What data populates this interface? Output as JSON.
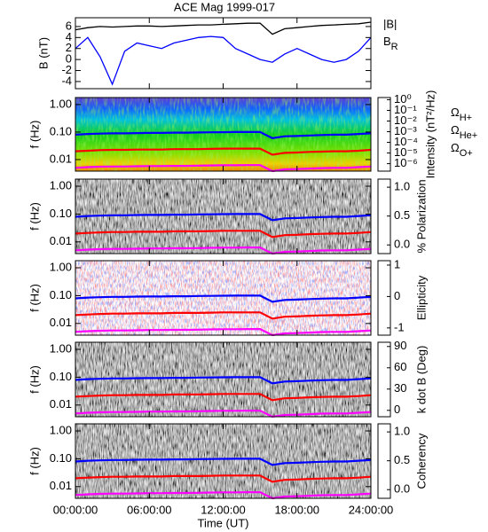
{
  "chart_data": [
    {
      "type": "line",
      "title": "ACE Mag 1999-017",
      "ylabel": "B (nT)",
      "xlim": [
        0,
        24
      ],
      "ylim": [
        -5.3,
        7.6
      ],
      "yticks": [
        -4,
        -2,
        0,
        2,
        4,
        6
      ],
      "x": [
        0,
        1,
        2,
        3,
        4,
        5,
        6,
        7,
        8,
        9,
        10,
        11,
        12,
        13,
        14,
        15,
        16,
        17,
        18,
        19,
        20,
        21,
        22,
        23,
        24
      ],
      "series": [
        {
          "name": "|B|",
          "color": "#000000",
          "values": [
            5.4,
            5.8,
            6.0,
            5.9,
            6.0,
            6.1,
            6.1,
            6.0,
            6.1,
            6.2,
            6.3,
            6.3,
            6.4,
            6.5,
            6.6,
            6.6,
            4.6,
            5.6,
            5.8,
            6.0,
            6.2,
            6.3,
            6.4,
            6.5,
            6.8
          ]
        },
        {
          "name": "BR",
          "color": "#0000ff",
          "values": [
            2.0,
            4.0,
            0.5,
            -4.5,
            1.5,
            3.0,
            2.5,
            2.0,
            3.0,
            3.5,
            4.0,
            4.2,
            4.0,
            2.0,
            1.0,
            0.0,
            -0.5,
            1.0,
            2.0,
            1.0,
            0.0,
            -0.5,
            0.0,
            1.5,
            4.0
          ]
        }
      ]
    },
    {
      "type": "spectrogram",
      "ylabel": "f (Hz)",
      "xlim": [
        0,
        24
      ],
      "ylim": [
        0.0038,
        1.8
      ],
      "log_y": true,
      "yticks": [
        {
          "value": 1,
          "label": "1.00"
        },
        {
          "value": 0.1,
          "label": "0.10"
        },
        0.01
      ],
      "colorbar": {
        "label": "Intensity (nT²/Hz)",
        "colormap": "rainbow",
        "log": true,
        "lim": [
          2e-07,
          1.6
        ],
        "ticks": [
          {
            "value": 1,
            "label": "10⁰"
          },
          {
            "value": 0.1,
            "label": "10⁻¹"
          },
          {
            "value": 0.01,
            "label": "10⁻²"
          },
          {
            "value": 0.001,
            "label": "10⁻³"
          },
          {
            "value": 0.0001,
            "label": "10⁻⁴"
          },
          {
            "value": 1e-05,
            "label": "10⁻⁵"
          },
          {
            "value": 1e-06,
            "label": "10⁻⁶"
          }
        ]
      },
      "x": [
        0,
        1,
        2,
        3,
        4,
        5,
        6,
        7,
        8,
        9,
        10,
        11,
        12,
        13,
        14,
        15,
        16,
        17,
        18,
        19,
        20,
        21,
        22,
        23,
        24
      ],
      "series": [
        {
          "name": "ΩH+",
          "color": "#0000ff",
          "values": [
            0.08,
            0.085,
            0.088,
            0.09,
            0.09,
            0.092,
            0.093,
            0.093,
            0.095,
            0.095,
            0.097,
            0.098,
            0.099,
            0.1,
            0.1,
            0.1,
            0.06,
            0.07,
            0.072,
            0.075,
            0.078,
            0.08,
            0.08,
            0.085,
            0.09
          ]
        },
        {
          "name": "ΩHe+",
          "color": "#ff0000",
          "values": [
            0.02,
            0.021,
            0.022,
            0.0225,
            0.0225,
            0.023,
            0.023,
            0.023,
            0.024,
            0.024,
            0.024,
            0.0245,
            0.025,
            0.025,
            0.025,
            0.025,
            0.015,
            0.0175,
            0.018,
            0.019,
            0.0195,
            0.02,
            0.02,
            0.021,
            0.0225
          ]
        },
        {
          "name": "ΩO+",
          "color": "#ff00ff",
          "values": [
            0.005,
            0.0053,
            0.0055,
            0.0056,
            0.0056,
            0.0057,
            0.0058,
            0.0058,
            0.0059,
            0.0059,
            0.006,
            0.0061,
            0.0062,
            0.0062,
            0.0063,
            0.0063,
            0.0038,
            0.0044,
            0.0045,
            0.0047,
            0.0049,
            0.005,
            0.005,
            0.0053,
            0.0056
          ]
        }
      ]
    },
    {
      "type": "spectrogram",
      "ylabel": "f (Hz)",
      "xlim": [
        0,
        24
      ],
      "ylim": [
        0.0038,
        1.8
      ],
      "log_y": true,
      "yticks": [
        {
          "value": 1,
          "label": "1.00"
        },
        {
          "value": 0.1,
          "label": "0.10"
        },
        0.01
      ],
      "colorbar": {
        "label": "% Polarization",
        "colormap": "gray",
        "log": false,
        "lim": [
          -0.15,
          1.14
        ],
        "ticks": [
          {
            "value": 0,
            "label": "0.0"
          },
          0.5,
          {
            "value": 1,
            "label": "1.0"
          }
        ]
      }
    },
    {
      "type": "spectrogram",
      "ylabel": "f (Hz)",
      "xlim": [
        0,
        24
      ],
      "ylim": [
        0.0038,
        1.8
      ],
      "log_y": true,
      "yticks": [
        {
          "value": 1,
          "label": "1.00"
        },
        {
          "value": 0.1,
          "label": "0.10"
        },
        0.01
      ],
      "colorbar": {
        "label": "Ellipticity",
        "colormap": "bwr",
        "log": false,
        "lim": [
          -1.23,
          1.14
        ],
        "ticks": [
          -1,
          0,
          1
        ]
      }
    },
    {
      "type": "spectrogram",
      "ylabel": "f (Hz)",
      "xlim": [
        0,
        24
      ],
      "ylim": [
        0.0038,
        1.8
      ],
      "log_y": true,
      "yticks": [
        {
          "value": 1,
          "label": "1.00"
        },
        {
          "value": 0.1,
          "label": "0.10"
        },
        0.01
      ],
      "colorbar": {
        "label": "k dot B (Deg)",
        "colormap": "gray",
        "log": false,
        "lim": [
          -9,
          96
        ],
        "ticks": [
          0,
          30,
          60,
          90
        ]
      }
    },
    {
      "type": "spectrogram",
      "ylabel": "f (Hz)",
      "xlabel": "Time (UT)",
      "xlim": [
        0,
        24
      ],
      "ylim": [
        0.0038,
        1.8
      ],
      "log_y": true,
      "yticks": [
        {
          "value": 1,
          "label": "1.00"
        },
        {
          "value": 0.1,
          "label": "0.10"
        },
        0.01
      ],
      "xticks": [
        {
          "value": 0,
          "label": "00:00:00"
        },
        {
          "value": 6,
          "label": "06:00:00"
        },
        {
          "value": 12,
          "label": "12:00:00"
        },
        {
          "value": 18,
          "label": "18:00:00"
        },
        {
          "value": 24,
          "label": "24:00:00"
        }
      ],
      "colorbar": {
        "label": "Coherency",
        "colormap": "gray",
        "log": false,
        "lim": [
          -0.15,
          1.14
        ],
        "ticks": [
          {
            "value": 0,
            "label": "0.0"
          },
          0.5,
          {
            "value": 1,
            "label": "1.0"
          }
        ]
      }
    }
  ]
}
